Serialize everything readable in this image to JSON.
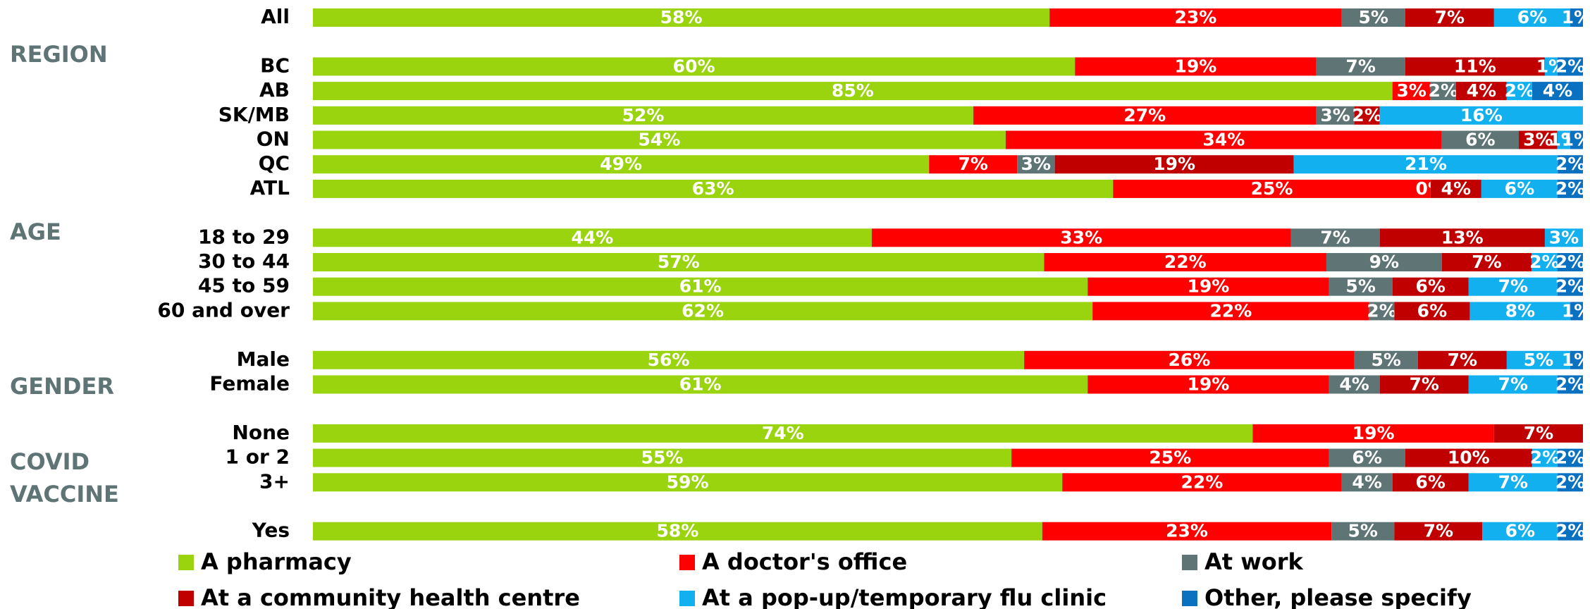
{
  "chart_data": {
    "type": "stacked-bar",
    "groups": [
      "REGION",
      "AGE",
      "GENDER",
      "COVID VACCINE"
    ],
    "categories": [
      "All",
      "BC",
      "AB",
      "SK/MB",
      "ON",
      "QC",
      "ATL",
      "18 to 29",
      "30 to 44",
      "45 to 59",
      "60 and over",
      "Male",
      "Female",
      "None",
      "1 or 2",
      "3+",
      "Yes"
    ],
    "series": [
      {
        "name": "A pharmacy",
        "color": "#99d40f",
        "values": [
          58,
          60,
          85,
          52,
          54,
          49,
          63,
          44,
          57,
          61,
          62,
          56,
          61,
          74,
          55,
          59,
          58
        ],
        "value_labels": [
          "58%",
          "60%",
          "85%",
          "52%",
          "54%",
          "49%",
          "63%",
          "44%",
          "57%",
          "61%",
          "62%",
          "56%",
          "61%",
          "74%",
          "55%",
          "59%",
          "58%"
        ]
      },
      {
        "name": "A doctor's office",
        "color": "#ff0000",
        "values": [
          23,
          19,
          3,
          27,
          34,
          7,
          25,
          33,
          22,
          19,
          22,
          26,
          19,
          19,
          25,
          22,
          23
        ],
        "value_labels": [
          "23%",
          "19%",
          "3%",
          "27%",
          "34%",
          "7%",
          "25%",
          "33%",
          "22%",
          "19%",
          "22%",
          "26%",
          "19%",
          "19%",
          "25%",
          "22%",
          "23%"
        ]
      },
      {
        "name": "At work",
        "color": "#5f7474",
        "values": [
          5,
          7,
          2,
          3,
          6,
          3,
          0,
          7,
          9,
          5,
          2,
          5,
          4,
          null,
          6,
          4,
          5
        ],
        "value_labels": [
          "5%",
          "7%",
          "2%",
          "3%",
          "6%",
          "3%",
          "0%",
          "7%",
          "9%",
          "5%",
          "2%",
          "5%",
          "4%",
          null,
          "6%",
          "4%",
          "5%"
        ]
      },
      {
        "name": "At a community health centre",
        "color": "#c00000",
        "values": [
          7,
          11,
          4,
          2,
          3,
          19,
          4,
          13,
          7,
          6,
          6,
          7,
          7,
          7,
          10,
          6,
          7
        ],
        "value_labels": [
          "7%",
          "11%",
          "4%",
          "2%",
          "3%",
          "19%",
          "4%",
          "13%",
          "7%",
          "6%",
          "6%",
          "7%",
          "7%",
          "7%",
          "10%",
          "6%",
          "7%"
        ]
      },
      {
        "name": "At a pop-up/temporary flu clinic",
        "color": "#12b0ef",
        "values": [
          6,
          1,
          2,
          16,
          1,
          21,
          6,
          3,
          2,
          7,
          8,
          5,
          7,
          null,
          2,
          7,
          6
        ],
        "value_labels": [
          "6%",
          "1%",
          "2%",
          "16%",
          "1%",
          "21%",
          "6%",
          "3%",
          "2%",
          "7%",
          "8%",
          "5%",
          "7%",
          null,
          "2%",
          "7%",
          "6%"
        ]
      },
      {
        "name": "Other, please specify",
        "color": "#0a70c0",
        "values": [
          1,
          2,
          4,
          null,
          1,
          2,
          2,
          null,
          2,
          2,
          1,
          1,
          2,
          null,
          2,
          2,
          2
        ],
        "value_labels": [
          "1%",
          "2%",
          "4%",
          null,
          "1%",
          "2%",
          "2%",
          null,
          "2%",
          "2%",
          "1%",
          "1%",
          "2%",
          null,
          "2%",
          "2%",
          "2%"
        ]
      }
    ]
  }
}
